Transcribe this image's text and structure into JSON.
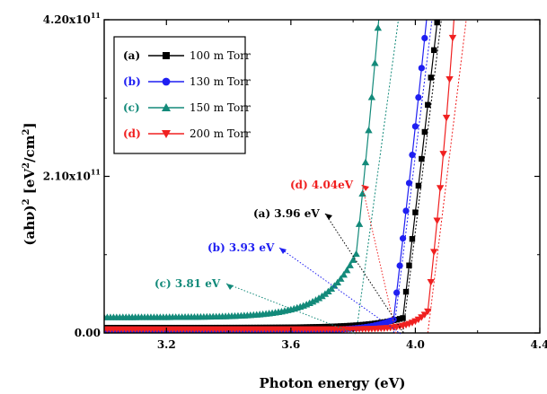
{
  "chart_data": {
    "type": "scatter",
    "xlabel": "Photon energy (eV)",
    "ylabel_parts": {
      "main": "(ahν)",
      "sq": "2",
      "unit_open": " [eV",
      "unit_sq1": "2",
      "unit_mid": "/cm",
      "unit_sq2": "2",
      "unit_close": "]"
    },
    "xlim": [
      3.0,
      4.4
    ],
    "ylim": [
      0,
      420000000000.0
    ],
    "x_ticks": [
      {
        "value": 3.2,
        "label": "3.2"
      },
      {
        "value": 3.6,
        "label": "3.6"
      },
      {
        "value": 4.0,
        "label": "4.0"
      },
      {
        "value": 4.4,
        "label": "4.4"
      }
    ],
    "y_ticks": [
      {
        "value": 0,
        "mant": "0.00",
        "exp": ""
      },
      {
        "value": 210000000000.0,
        "mant": "2.10x10",
        "exp": "11"
      },
      {
        "value": 420000000000.0,
        "mant": "4.20x10",
        "exp": "11"
      }
    ],
    "series": [
      {
        "name": "100 m Torr",
        "tag": "(a)",
        "color": "#000000",
        "marker": "square",
        "x0": 3.96,
        "base": 7000000000.0,
        "tail": 13000000000.0,
        "w": 0.11,
        "k": 3400000000000.0
      },
      {
        "name": "130 m Torr",
        "tag": "(b)",
        "color": "#1f1ff2",
        "marker": "circle",
        "x0": 3.93,
        "base": 3000000000.0,
        "tail": 15000000000.0,
        "w": 0.08,
        "k": 3400000000000.0
      },
      {
        "name": "150 m Torr",
        "tag": "(c)",
        "color": "#138a7a",
        "marker": "triangle-up",
        "x0": 3.81,
        "base": 21000000000.0,
        "tail": 85000000000.0,
        "w": 0.1,
        "k": 3100000000000.0
      },
      {
        "name": "200 m Torr",
        "tag": "(d)",
        "color": "#f02020",
        "marker": "triangle-down",
        "x0": 4.04,
        "base": 5000000000.0,
        "tail": 24000000000.0,
        "w": 0.05,
        "k": 3400000000000.0
      }
    ],
    "annotations": [
      {
        "text": "(d) 4.04eV",
        "color": "#f02020"
      },
      {
        "text": "(a) 3.96 eV",
        "color": "#000000"
      },
      {
        "text": "(b) 3.93 eV",
        "color": "#1f1ff2"
      },
      {
        "text": "(c) 3.81 eV",
        "color": "#138a7a"
      }
    ],
    "legend": {
      "placement": "top-left"
    }
  }
}
